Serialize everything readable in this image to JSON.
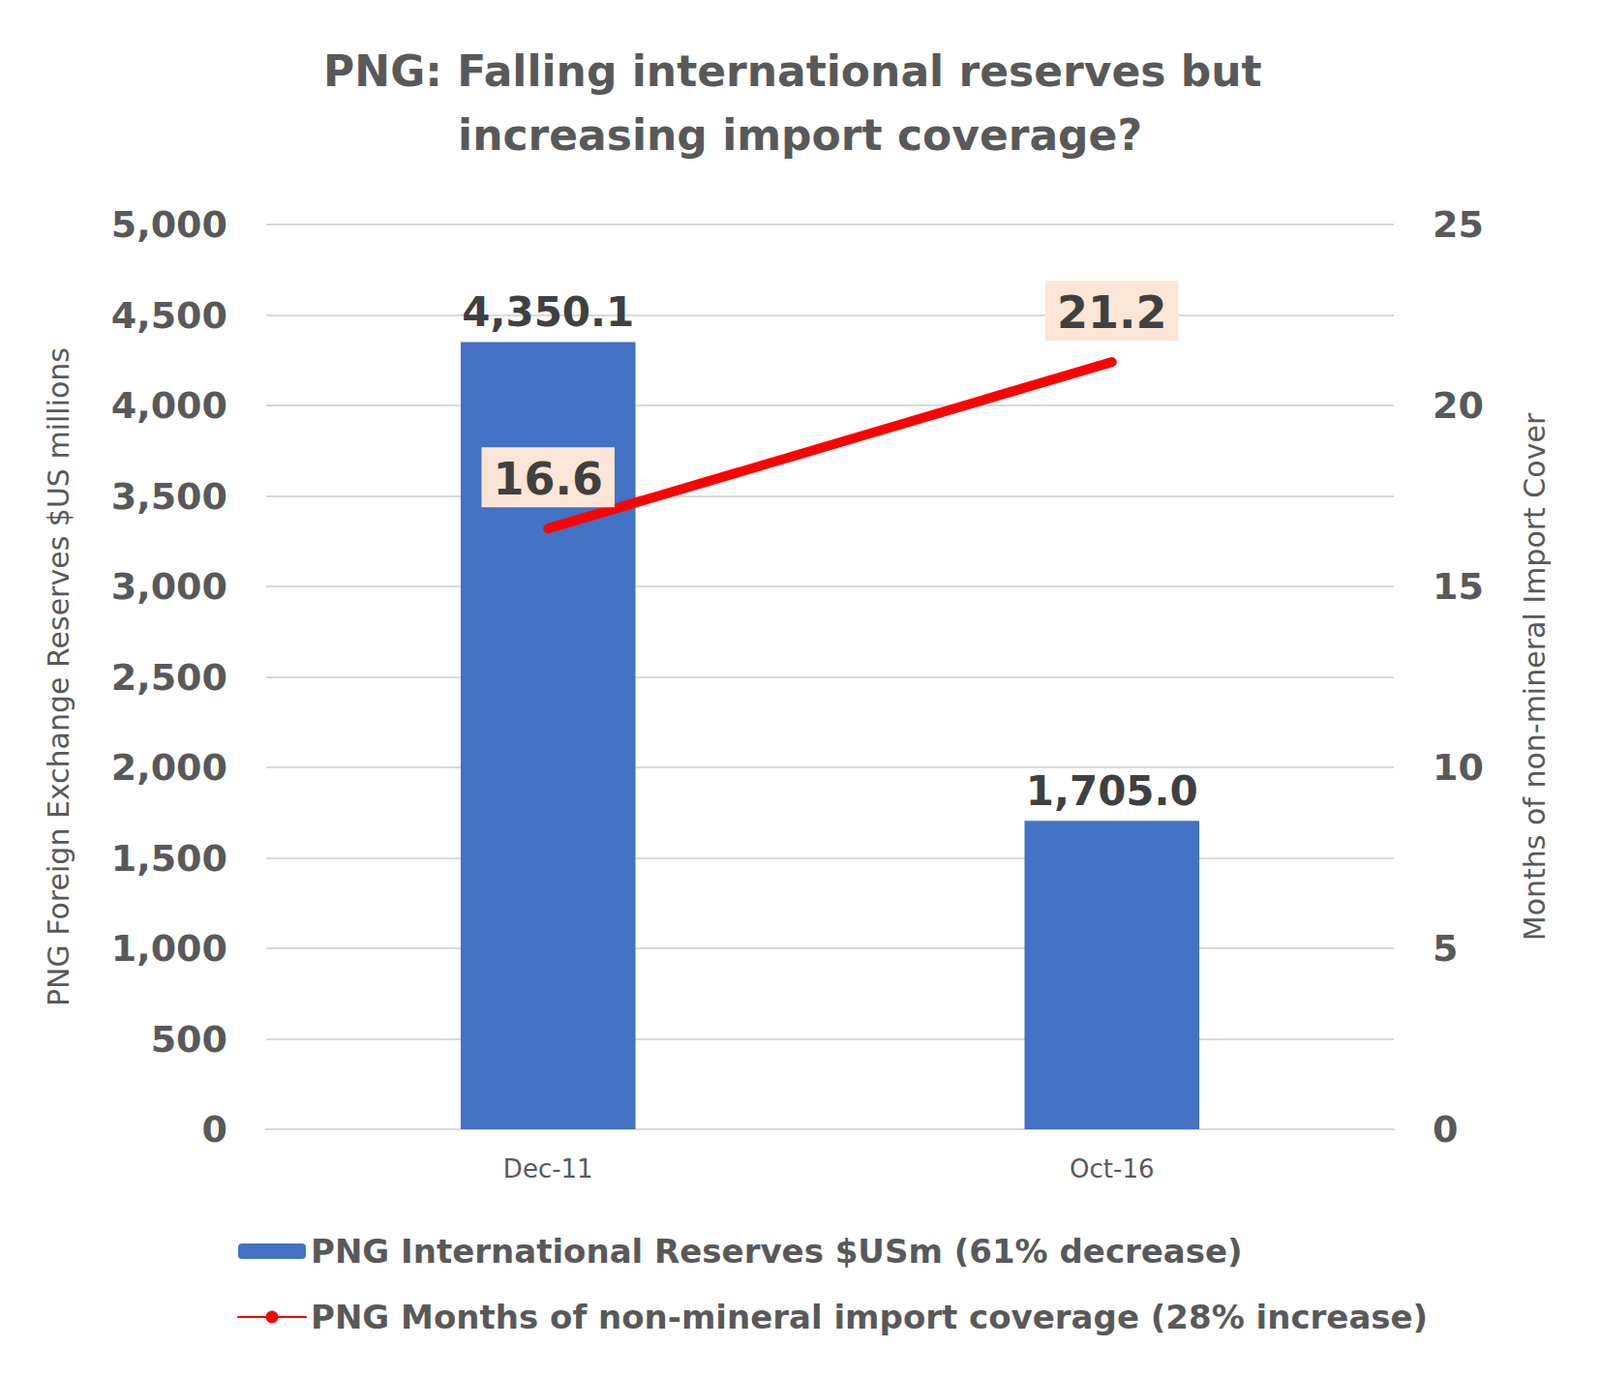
{
  "chart_data": {
    "type": "bar",
    "title": "PNG: Falling international reserves but increasing import coverage?",
    "categories": [
      "Dec-11",
      "Oct-16"
    ],
    "series": [
      {
        "name": "PNG International Reserves $USm (61% decrease)",
        "type": "bar",
        "color": "#4472c4",
        "values": [
          4350.1,
          1705.0
        ],
        "value_labels": [
          "4,350.1",
          "1,705.0"
        ]
      },
      {
        "name": "PNG Months of non-mineral import coverage (28% increase)",
        "type": "line",
        "color": "#ff0000",
        "axis": "y2",
        "values": [
          16.6,
          21.2
        ]
      }
    ],
    "ylabel": "PNG Foreign Exchange Reserves $US millions",
    "y2label": "Months of non-mineral Import Cover",
    "ylim": [
      0,
      5000
    ],
    "yticks": [
      0,
      500,
      {
        "value": 1000,
        "label": "1,000"
      },
      {
        "value": 1500,
        "label": "1,500"
      },
      {
        "value": 2000,
        "label": "2,000"
      },
      {
        "value": 2500,
        "label": "2,500"
      },
      {
        "value": 3000,
        "label": "3,000"
      },
      {
        "value": 3500,
        "label": "3,500"
      },
      {
        "value": 4000,
        "label": "4,000"
      },
      {
        "value": 4500,
        "label": "4,500"
      },
      {
        "value": 5000,
        "label": "5,000"
      }
    ],
    "y2lim": [
      0,
      25
    ],
    "y2ticks": [
      0,
      5,
      10,
      15,
      20,
      25
    ],
    "grid": true,
    "legend": "bottom",
    "data_labels": true
  }
}
